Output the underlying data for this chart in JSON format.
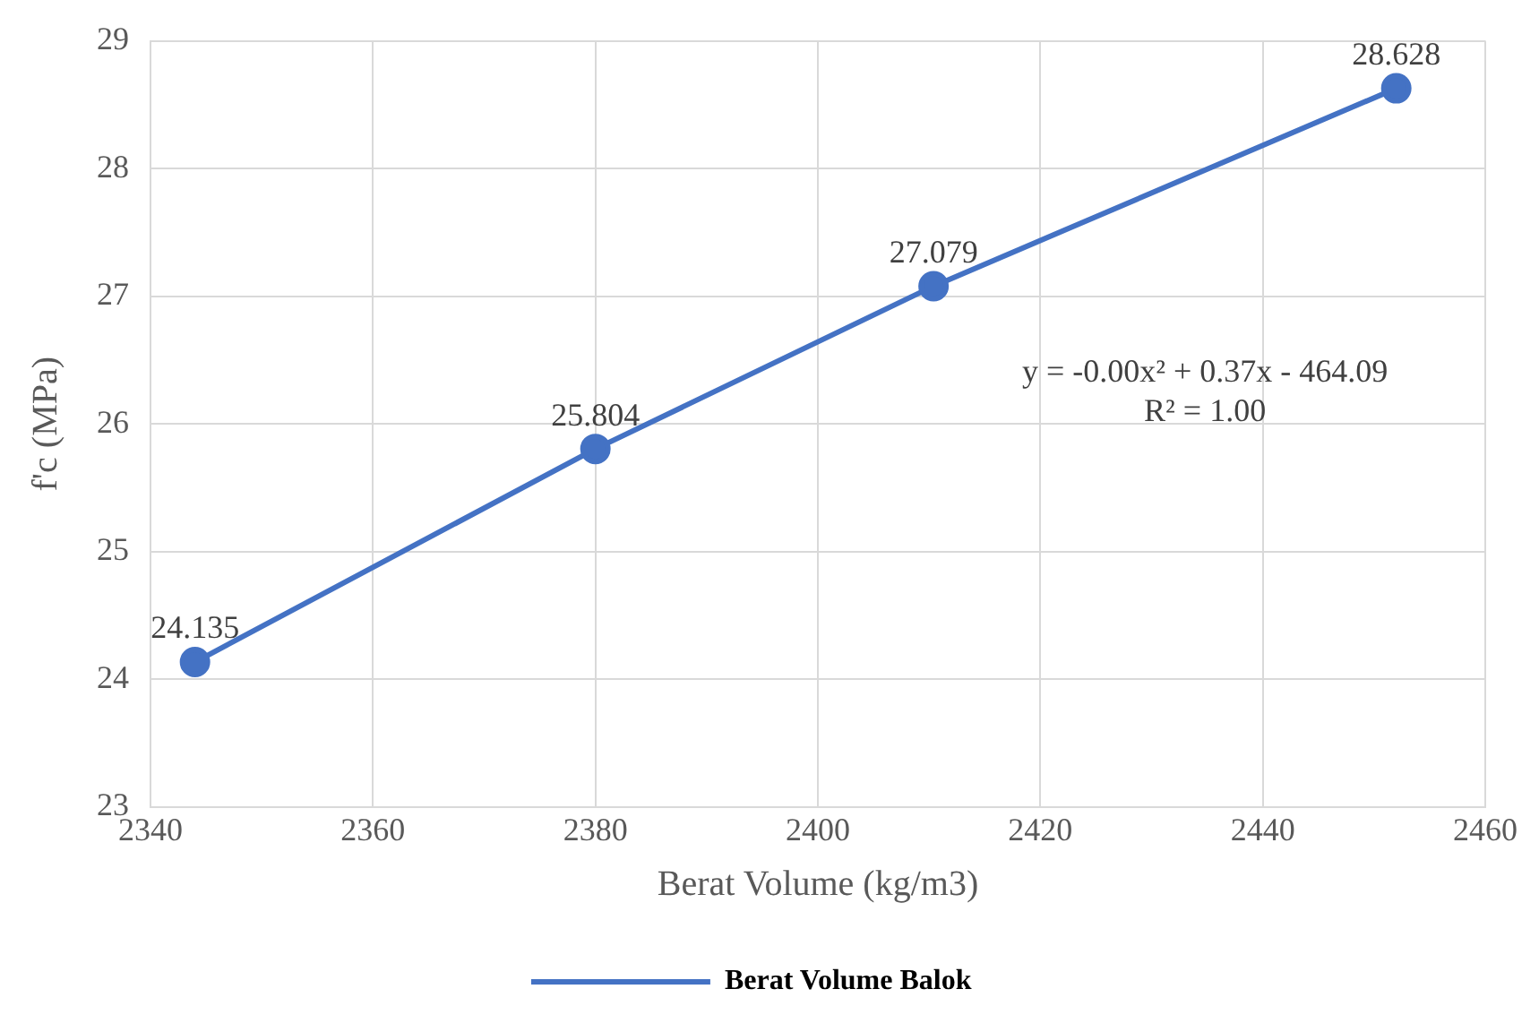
{
  "chart_data": {
    "type": "line",
    "xlabel": "Berat Volume (kg/m3)",
    "ylabel": "f'c (MPa)",
    "xlim": [
      2340,
      2460
    ],
    "xticks": [
      2340,
      2360,
      2380,
      2400,
      2420,
      2440,
      2460
    ],
    "ylim": [
      23,
      29
    ],
    "yticks": [
      23,
      24,
      25,
      26,
      27,
      28,
      29
    ],
    "grid": true,
    "legend": "bottom",
    "marker": "circle",
    "line_style": "solid",
    "series": [
      {
        "name": "Berat Volume Balok",
        "color": "#4472c4",
        "x": [
          2344,
          2380,
          2410.4,
          2452
        ],
        "values": [
          24.135,
          25.804,
          27.079,
          28.628
        ],
        "value_labels": [
          "24.135",
          "25.804",
          "27.079",
          "28.628"
        ]
      }
    ],
    "annotations": [
      "y = -0.00x² + 0.37x - 464.09",
      "R² = 1.00"
    ]
  }
}
